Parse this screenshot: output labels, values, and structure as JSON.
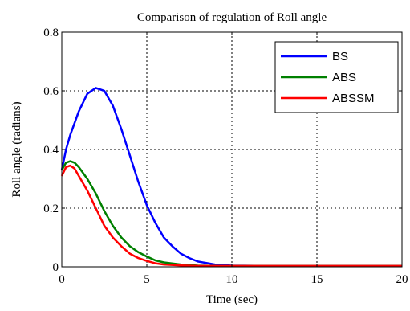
{
  "chart_data": {
    "type": "line",
    "title": "Comparison of regulation of Roll angle",
    "xlabel": "Time (sec)",
    "ylabel": "Roll angle (radians)",
    "xlim": [
      0,
      20
    ],
    "ylim": [
      0,
      0.8
    ],
    "xticks": [
      0,
      5,
      10,
      15,
      20
    ],
    "xtick_labels": [
      "0",
      "5",
      "10",
      "15",
      "20"
    ],
    "yticks": [
      0,
      0.2,
      0.4,
      0.6,
      0.8
    ],
    "ytick_labels": [
      "0",
      "0.2",
      "0.4",
      "0.6",
      "0.8"
    ],
    "grid": true,
    "legend_position": "top-right",
    "series": [
      {
        "name": "BS",
        "color": "#0000ff",
        "x": [
          0,
          0.25,
          0.5,
          1.0,
          1.5,
          2.0,
          2.5,
          3.0,
          3.5,
          4.0,
          4.5,
          5.0,
          5.5,
          6.0,
          6.5,
          7.0,
          7.5,
          8.0,
          9.0,
          10.0,
          12.0,
          15.0,
          20.0
        ],
        "y": [
          0.33,
          0.4,
          0.45,
          0.53,
          0.59,
          0.61,
          0.6,
          0.55,
          0.47,
          0.38,
          0.29,
          0.21,
          0.15,
          0.1,
          0.07,
          0.045,
          0.03,
          0.018,
          0.008,
          0.004,
          0.003,
          0.003,
          0.003
        ]
      },
      {
        "name": "ABS",
        "color": "#008000",
        "x": [
          0,
          0.25,
          0.5,
          0.75,
          1.0,
          1.5,
          2.0,
          2.5,
          3.0,
          3.5,
          4.0,
          4.5,
          5.0,
          5.5,
          6.0,
          7.0,
          8.0,
          10.0,
          15.0,
          20.0
        ],
        "y": [
          0.33,
          0.355,
          0.36,
          0.355,
          0.34,
          0.3,
          0.25,
          0.19,
          0.14,
          0.1,
          0.07,
          0.05,
          0.035,
          0.022,
          0.015,
          0.008,
          0.004,
          0.003,
          0.003,
          0.003
        ]
      },
      {
        "name": "ABSSM",
        "color": "#ff0000",
        "x": [
          0,
          0.25,
          0.5,
          0.75,
          1.0,
          1.5,
          2.0,
          2.5,
          3.0,
          3.5,
          4.0,
          4.5,
          5.0,
          5.5,
          6.0,
          7.0,
          8.0,
          10.0,
          15.0,
          20.0
        ],
        "y": [
          0.31,
          0.34,
          0.345,
          0.335,
          0.31,
          0.26,
          0.2,
          0.14,
          0.1,
          0.07,
          0.045,
          0.03,
          0.02,
          0.012,
          0.008,
          0.005,
          0.003,
          0.003,
          0.003,
          0.003
        ]
      }
    ]
  }
}
